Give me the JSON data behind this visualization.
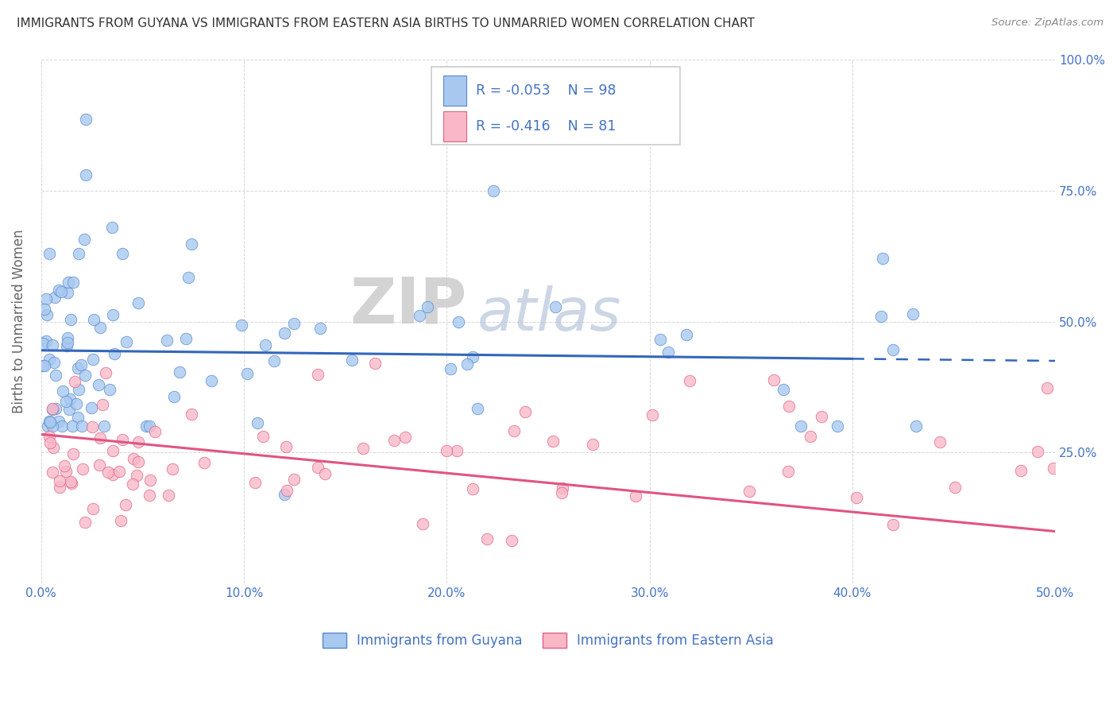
{
  "title": "IMMIGRANTS FROM GUYANA VS IMMIGRANTS FROM EASTERN ASIA BIRTHS TO UNMARRIED WOMEN CORRELATION CHART",
  "source": "Source: ZipAtlas.com",
  "ylabel": "Births to Unmarried Women",
  "legend_label1": "Immigrants from Guyana",
  "legend_label2": "Immigrants from Eastern Asia",
  "r1": -0.053,
  "n1": 98,
  "r2": -0.416,
  "n2": 81,
  "color_blue_fill": "#A8C8F0",
  "color_blue_edge": "#5588CC",
  "color_pink_fill": "#F8B8C8",
  "color_pink_edge": "#E06080",
  "color_blue_line": "#3366BB",
  "color_pink_line": "#E05580",
  "bg_color": "#FFFFFF",
  "grid_color": "#BBBBBB",
  "xlim": [
    0.0,
    0.5
  ],
  "ylim": [
    0.0,
    1.0
  ],
  "blue_line_x_solid_end": 0.4,
  "blue_line_intercept": 0.445,
  "blue_line_slope": -0.04,
  "pink_line_intercept": 0.285,
  "pink_line_slope": -0.37
}
